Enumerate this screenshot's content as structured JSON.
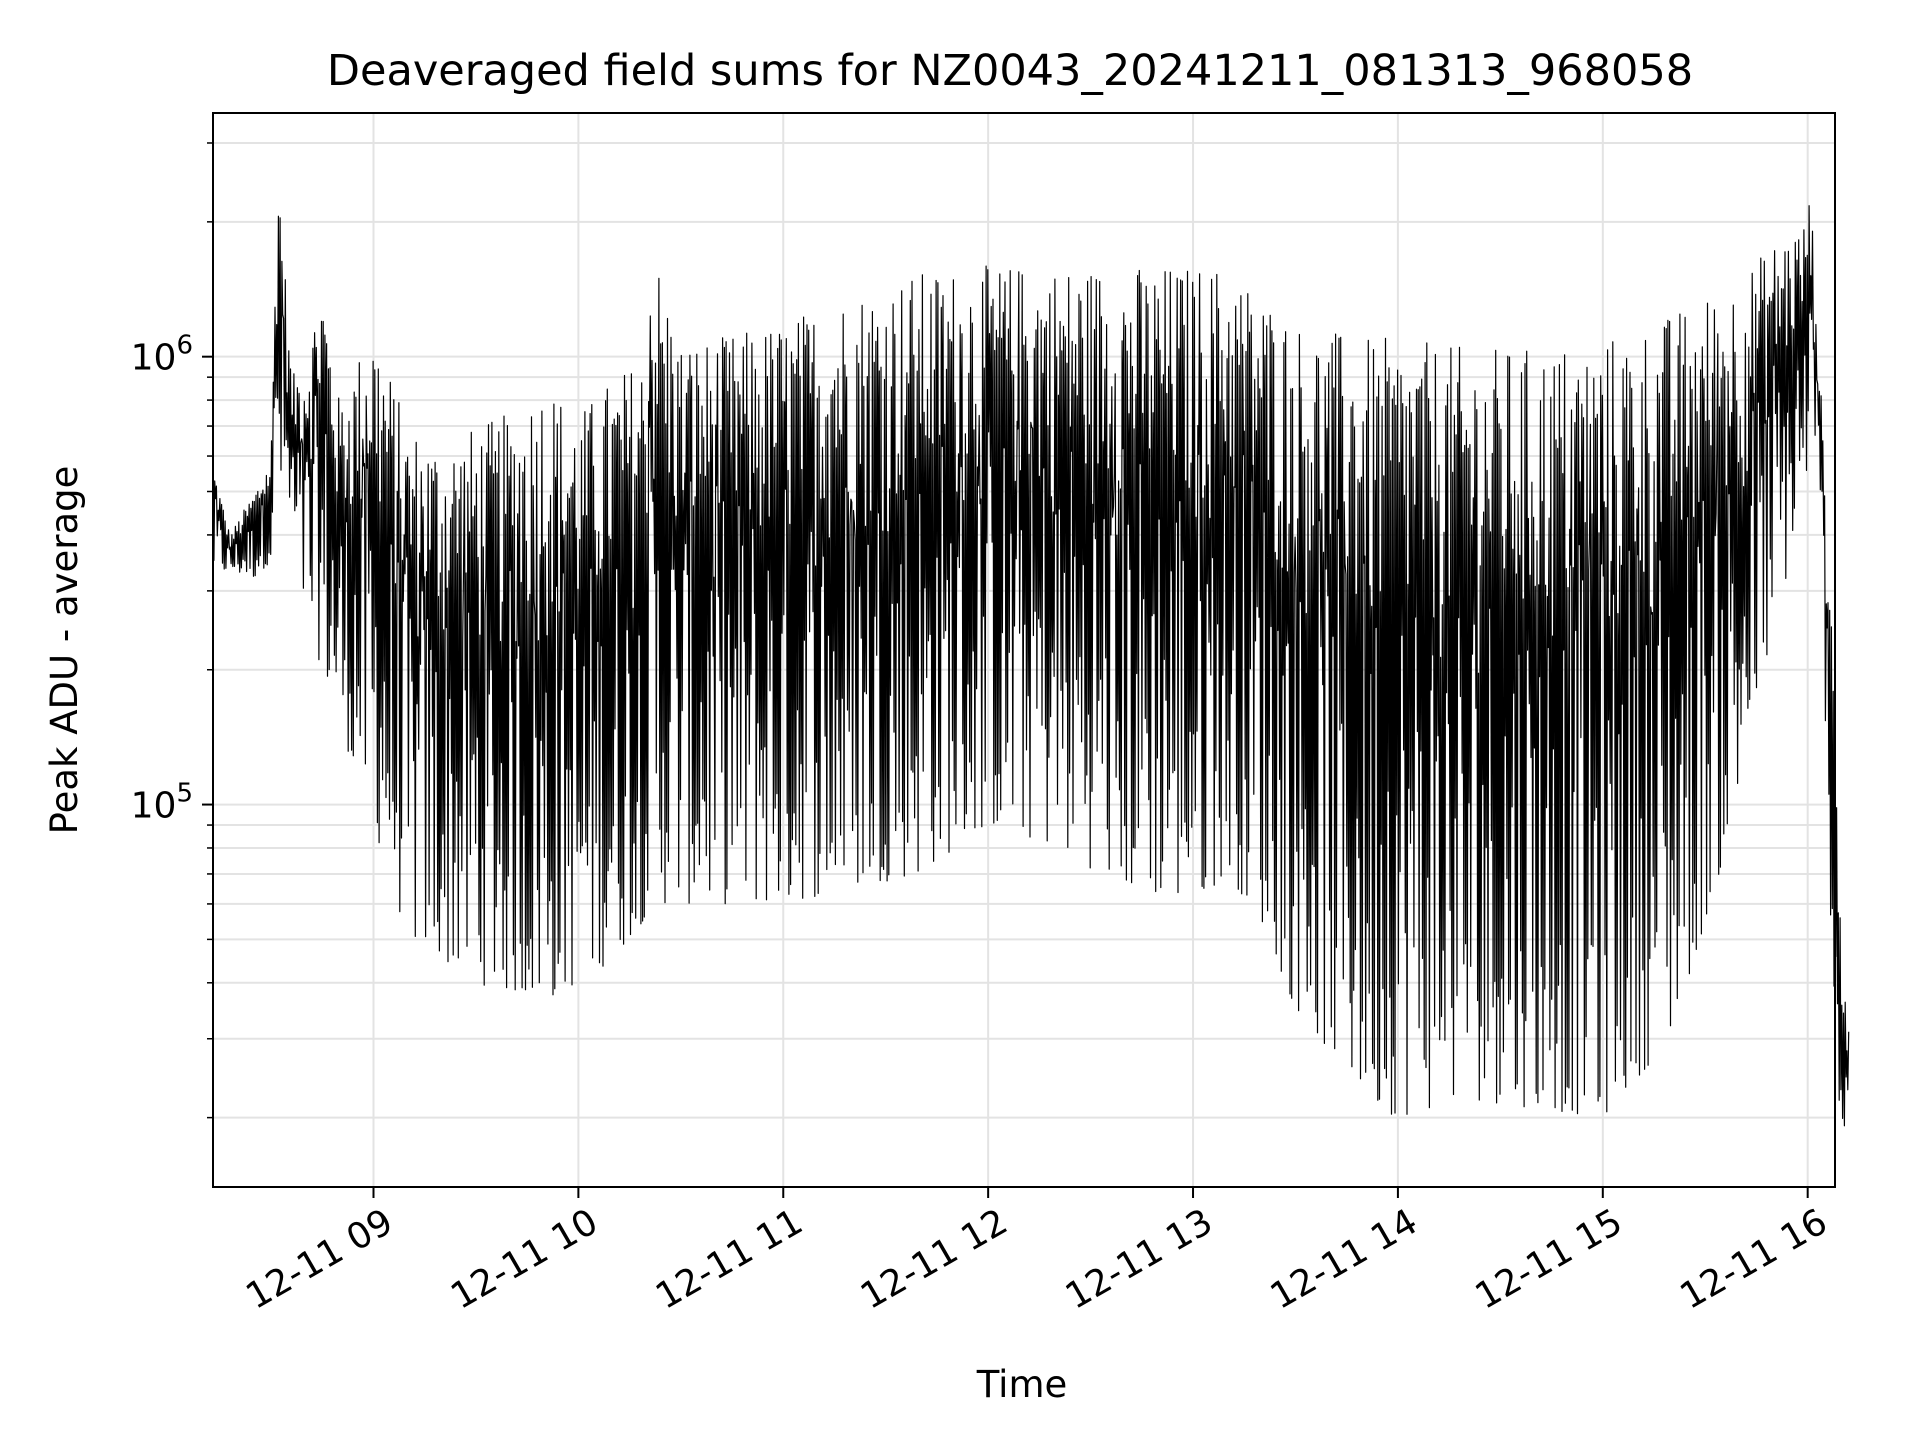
{
  "chart_data": {
    "type": "line",
    "title": "Deaveraged field sums for NZ0043_20241211_081313_968058",
    "xlabel": "Time",
    "ylabel": "Peak ADU - average",
    "yscale": "log",
    "xlim": [
      "2024-12-11T08:13",
      "2024-12-11T16:00"
    ],
    "ylim": [
      14000,
      3500000
    ],
    "grid": true,
    "line_color": "#000000",
    "x_ticks": [
      {
        "value": "2024-12-11T09:00",
        "label": "12-11 09"
      },
      {
        "value": "2024-12-11T10:00",
        "label": "12-11 10"
      },
      {
        "value": "2024-12-11T11:00",
        "label": "12-11 11"
      },
      {
        "value": "2024-12-11T12:00",
        "label": "12-11 12"
      },
      {
        "value": "2024-12-11T13:00",
        "label": "12-11 13"
      },
      {
        "value": "2024-12-11T14:00",
        "label": "12-11 14"
      },
      {
        "value": "2024-12-11T15:00",
        "label": "12-11 15"
      },
      {
        "value": "2024-12-11T16:00",
        "label": "12-11 16"
      }
    ],
    "y_ticks": [
      {
        "value": 100000,
        "base": "10",
        "exp": "5"
      },
      {
        "value": 1000000,
        "base": "10",
        "exp": "6"
      }
    ],
    "series": [
      {
        "envelope": {
          "x": [
            "2024-12-11T08:13",
            "2024-12-11T08:18",
            "2024-12-11T08:25",
            "2024-12-11T08:30",
            "2024-12-11T08:32",
            "2024-12-11T08:36",
            "2024-12-11T08:40",
            "2024-12-11T08:45",
            "2024-12-11T08:50",
            "2024-12-11T09:00",
            "2024-12-11T09:10",
            "2024-12-11T09:20",
            "2024-12-11T09:30",
            "2024-12-11T09:40",
            "2024-12-11T09:50",
            "2024-12-11T10:00",
            "2024-12-11T10:10",
            "2024-12-11T10:19",
            "2024-12-11T10:21",
            "2024-12-11T10:30",
            "2024-12-11T10:40",
            "2024-12-11T11:00",
            "2024-12-11T11:20",
            "2024-12-11T11:40",
            "2024-12-11T12:00",
            "2024-12-11T12:20",
            "2024-12-11T12:40",
            "2024-12-11T13:00",
            "2024-12-11T13:10",
            "2024-12-11T13:20",
            "2024-12-11T13:30",
            "2024-12-11T13:40",
            "2024-12-11T13:50",
            "2024-12-11T14:00",
            "2024-12-11T14:20",
            "2024-12-11T14:40",
            "2024-12-11T15:00",
            "2024-12-11T15:20",
            "2024-12-11T15:40",
            "2024-12-11T15:50",
            "2024-12-11T15:59",
            "2024-12-11T16:00",
            "2024-12-11T16:02",
            "2024-12-11T16:04",
            "2024-12-11T16:06",
            "2024-12-11T16:08",
            "2024-12-11T16:10",
            "2024-12-11T16:12"
          ],
          "upper": [
            580000,
            400000,
            500000,
            600000,
            2900000,
            900000,
            1000000,
            1500000,
            800000,
            1200000,
            700000,
            650000,
            700000,
            750000,
            900000,
            750000,
            900000,
            1000000,
            1900000,
            1100000,
            1100000,
            1200000,
            1400000,
            1550000,
            1600000,
            1600000,
            1600000,
            1600000,
            1600000,
            1400000,
            1200000,
            1150000,
            1100000,
            1100000,
            1050000,
            1050000,
            1100000,
            1250000,
            1500000,
            1800000,
            2000000,
            2400000,
            1800000,
            800000,
            400000,
            200000,
            40000,
            35000
          ],
          "lower": [
            330000,
            330000,
            320000,
            350000,
            500000,
            400000,
            260000,
            200000,
            150000,
            90000,
            50000,
            45000,
            40000,
            38000,
            36000,
            40000,
            45000,
            55000,
            60000,
            60000,
            60000,
            60000,
            65000,
            70000,
            90000,
            80000,
            65000,
            60000,
            70000,
            55000,
            35000,
            28000,
            22000,
            20000,
            22000,
            21000,
            20000,
            30000,
            100000,
            250000,
            450000,
            600000,
            500000,
            400000,
            80000,
            30000,
            17000,
            18000
          ]
        },
        "color": "#000000"
      }
    ]
  }
}
